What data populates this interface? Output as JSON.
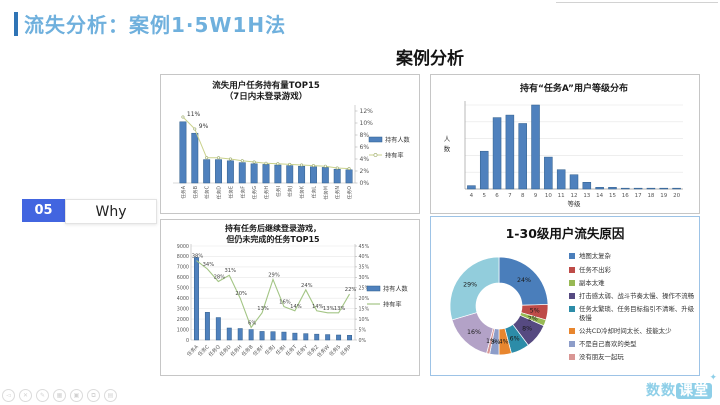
{
  "header": {
    "title": "流失分析：案例1·5W1H法"
  },
  "page_heading": "案例分析",
  "step_tag": {
    "number": "05",
    "label": "Why"
  },
  "colors": {
    "accent": "#2f74b5",
    "title_blue": "#6fb0dd",
    "step_blue": "#4265e0",
    "bar": "#4f81bd",
    "bar_border": "#2e5c8a",
    "line_top": "#c9d18b",
    "line_top_marker": "#9aa968",
    "line_bottom": "#a3c585",
    "logo_blue": "#8ecfe8"
  },
  "chart_data": [
    {
      "type": "combo-bar-line",
      "title_lines": [
        "流失用户任务持有量TOP15",
        "（7日内未登录游戏）"
      ],
      "categories": [
        "任务A",
        "任务B",
        "任务C",
        "任务D",
        "任务E",
        "任务F",
        "任务G",
        "任务H",
        "任务I",
        "任务J",
        "任务K",
        "任务L",
        "任务M",
        "任务N",
        "任务O"
      ],
      "bar_series": {
        "name": "持有人数",
        "values": [
          10.2,
          8.3,
          3.9,
          3.9,
          3.7,
          3.4,
          3.2,
          3.1,
          3.0,
          2.9,
          2.8,
          2.7,
          2.6,
          2.3,
          2.2
        ]
      },
      "line_series": {
        "name": "持有率",
        "values": [
          11,
          9,
          4.2,
          4.2,
          4.0,
          3.7,
          3.5,
          3.3,
          3.2,
          3.1,
          3.0,
          2.9,
          2.8,
          2.5,
          2.4
        ],
        "point_labels": [
          "11%",
          "9%"
        ]
      },
      "right_axis": {
        "min": 0,
        "max": 12,
        "step": 2,
        "suffix": "%"
      },
      "legend": [
        "持有人数",
        "持有率"
      ],
      "legend_position": "right"
    },
    {
      "type": "bar",
      "title": "持有“任务A”用户等级分布",
      "xlabel": "等级",
      "ylabel": "人数",
      "categories": [
        "4",
        "5",
        "6",
        "7",
        "8",
        "9",
        "10",
        "11",
        "12",
        "13",
        "14",
        "15",
        "16",
        "17",
        "18",
        "19",
        "20"
      ],
      "values": [
        4,
        45,
        85,
        88,
        78,
        100,
        38,
        23,
        17,
        8,
        2,
        2,
        1,
        1,
        1,
        1,
        1
      ],
      "ylim": [
        0,
        100
      ],
      "grid": true
    },
    {
      "type": "combo-bar-line",
      "title_lines": [
        "持有任务后继续登录游戏，",
        "但仍未完成的任务TOP15"
      ],
      "categories": [
        "任务A",
        "任务C",
        "任务Q",
        "任务D",
        "任务H",
        "任务B",
        "任务F",
        "任务J",
        "任务I",
        "任务T",
        "任务Y",
        "任务Z",
        "任务W",
        "任务S",
        "任务P"
      ],
      "bar_series": {
        "name": "持有人数",
        "values": [
          7900,
          2650,
          2150,
          1150,
          1100,
          1000,
          820,
          800,
          760,
          660,
          610,
          560,
          520,
          480,
          450
        ]
      },
      "line_series": {
        "name": "持有率",
        "values": [
          38,
          34,
          28,
          31,
          20,
          6,
          13,
          29,
          16,
          14,
          24,
          14,
          13,
          13,
          22
        ],
        "point_labels": [
          "38%",
          "34%",
          "28%",
          "31%",
          "20%",
          "6%",
          "13%",
          "29%",
          "16%",
          "14%",
          "24%",
          "14%",
          "13%",
          "13%",
          "22%"
        ]
      },
      "left_axis": {
        "min": 0,
        "max": 9000,
        "step": 1000
      },
      "right_axis": {
        "min": 0,
        "max": 45,
        "step": 5,
        "suffix": "%"
      },
      "legend": [
        "持有人数",
        "持有率"
      ],
      "legend_position": "right"
    },
    {
      "type": "donut",
      "title": "1-30级用户流失原因",
      "slices": [
        {
          "label": "地图太复杂",
          "value": 24,
          "pct": "24%",
          "color": "#4a7ebb"
        },
        {
          "label": "任务不出彩",
          "value": 5,
          "pct": "5%",
          "color": "#be4b48"
        },
        {
          "label": "副本太难",
          "value": 2,
          "pct": "2%",
          "color": "#98b954"
        },
        {
          "label": "打击感太弱、战斗节奏太慢、操作不流畅",
          "value": 8,
          "pct": "8%",
          "color": "#564a81"
        },
        {
          "label": "任务太繁琐、任务目标指引不清晰、升级极慢",
          "value": 6,
          "pct": "6%",
          "color": "#2c8ca8"
        },
        {
          "label": "公共CD冷却时间太长、技能太少",
          "value": 4,
          "pct": "4%",
          "color": "#e8862e"
        },
        {
          "label": "不是自己喜欢的类型",
          "value": 3,
          "pct": "3%",
          "color": "#8d9dc9"
        },
        {
          "label": "没有朋友一起玩",
          "value": 1,
          "pct": "1%",
          "color": "#d99694"
        },
        {
          "label": "",
          "value": 16,
          "pct": "16%",
          "color": "#b3a2c7"
        },
        {
          "label": "",
          "value": 29,
          "pct": "29%",
          "color": "#92cddc"
        }
      ],
      "legend": [
        "地图太复杂",
        "任务不出彩",
        "副本太难",
        "打击感太弱、战斗节奏太慢、操作不流畅",
        "任务太繁琐、任务目标指引不清晰、升级极慢",
        "公共CD冷却时间太长、技能太少",
        "不是自己喜欢的类型",
        "没有朋友一起玩"
      ],
      "legend_position": "right"
    }
  ],
  "watermark_icons": [
    {
      "name": "back-icon",
      "glyph": "◅"
    },
    {
      "name": "close-icon",
      "glyph": "✕"
    },
    {
      "name": "pen-icon",
      "glyph": "✎"
    },
    {
      "name": "board-icon",
      "glyph": "▦"
    },
    {
      "name": "camera-icon",
      "glyph": "▣"
    },
    {
      "name": "copy-icon",
      "glyph": "⧉"
    },
    {
      "name": "more-icon",
      "glyph": "▤"
    }
  ],
  "logo": {
    "left_text": "数数",
    "right_text": "课堂",
    "sparkle": "✦"
  }
}
